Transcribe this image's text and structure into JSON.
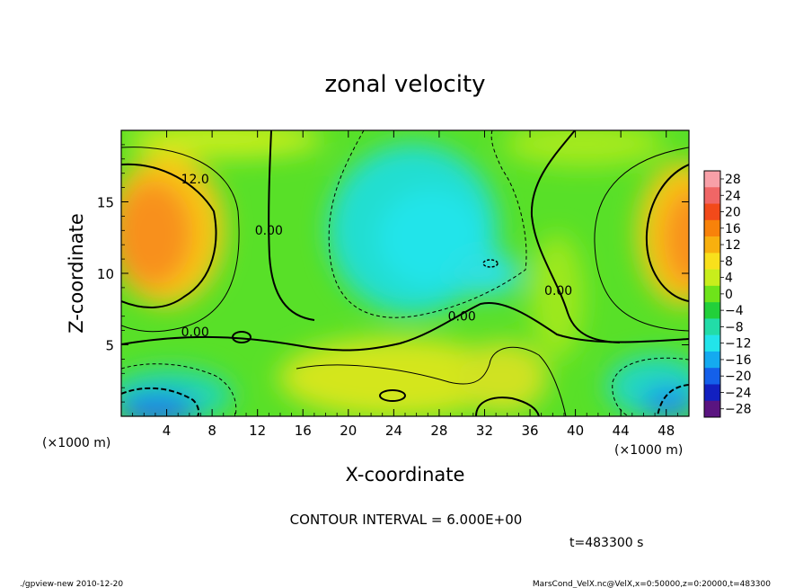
{
  "chart_data": {
    "type": "heatmap",
    "title": "zonal velocity",
    "xlabel": "X-coordinate",
    "ylabel": "Z-coordinate",
    "x_unit_note": "(×1000 m)",
    "y_unit_note": "(×1000 m)",
    "xlim": [
      0,
      50
    ],
    "ylim": [
      0,
      20
    ],
    "x_ticks": [
      4,
      8,
      12,
      16,
      20,
      24,
      28,
      32,
      36,
      40,
      44,
      48
    ],
    "y_ticks": [
      5,
      10,
      15
    ],
    "colorbar": {
      "labels": [
        "28",
        "24",
        "20",
        "16",
        "12",
        "8",
        "4",
        "0",
        "−4",
        "−8",
        "−12",
        "−16",
        "−20",
        "−24",
        "−28"
      ],
      "colors": [
        "#f8a0a8",
        "#f06666",
        "#f24a1a",
        "#f8820a",
        "#f8b00e",
        "#f8e01c",
        "#c8ee1c",
        "#6ee41a",
        "#22d03a",
        "#22dca8",
        "#22e4ea",
        "#14aaf0",
        "#1460ea",
        "#1220c0",
        "#5a1480"
      ]
    },
    "contour_labels": [
      {
        "text": "12.0",
        "x": 6.5,
        "z": 16.3
      },
      {
        "text": "0.00",
        "x": 13.0,
        "z": 12.7
      },
      {
        "text": "0.00",
        "x": 6.5,
        "z": 5.6
      },
      {
        "text": "0.00",
        "x": 30.0,
        "z": 6.7
      },
      {
        "text": "0.00",
        "x": 38.5,
        "z": 8.5
      }
    ],
    "contour_interval": "CONTOUR INTERVAL = 6.000E+00",
    "time": "t=483300 s"
  },
  "footer": {
    "left": "./gpview-new  2010-12-20",
    "right": "MarsCond_VelX.nc@VelX,x=0:50000,z=0:20000,t=483300"
  }
}
